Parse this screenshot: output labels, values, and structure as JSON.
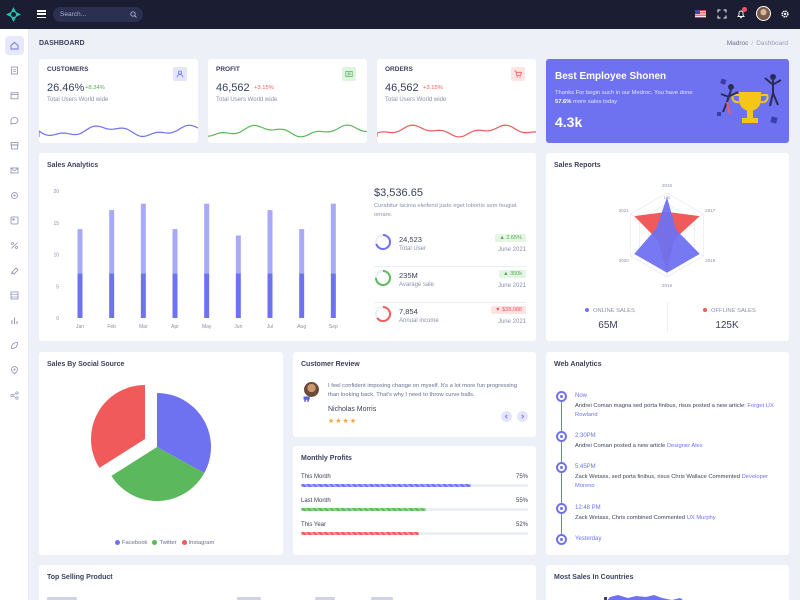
{
  "topbar": {
    "search_placeholder": "Search..."
  },
  "sidebar": {
    "items": [
      {
        "name": "home-icon",
        "active": true
      },
      {
        "name": "document-icon"
      },
      {
        "name": "calendar-icon"
      },
      {
        "name": "chat-icon"
      },
      {
        "name": "archive-icon"
      },
      {
        "name": "mail-icon"
      },
      {
        "name": "settings-icon"
      },
      {
        "name": "widget-icon"
      },
      {
        "name": "percent-icon"
      },
      {
        "name": "palette-icon"
      },
      {
        "name": "table-icon"
      },
      {
        "name": "chart-icon"
      },
      {
        "name": "leaf-icon"
      },
      {
        "name": "location-icon"
      },
      {
        "name": "share-icon"
      }
    ]
  },
  "page": {
    "title": "DASHBOARD",
    "breadcrumb": [
      "Madroc",
      "Dashboard"
    ]
  },
  "stats": [
    {
      "title": "CUSTOMERS",
      "value": "26.46%",
      "change": "+8.34%",
      "change_color": "#4caf50",
      "subtitle": "Total Users World wide",
      "icon": "user-icon",
      "icon_color": "#6f72f0",
      "icon_bg": "#e3e5fb",
      "wave_color": "#6f72f0"
    },
    {
      "title": "PROFIT",
      "value": "46,562",
      "change": "+3.15%",
      "change_color": "#f05a5a",
      "subtitle": "Total Users World wide",
      "icon": "dollar-icon",
      "icon_color": "#5cb85c",
      "icon_bg": "#def4de",
      "wave_color": "#5cb85c"
    },
    {
      "title": "ORDERS",
      "value": "46,562",
      "change": "+3.15%",
      "change_color": "#f05a5a",
      "subtitle": "Total Users World wide",
      "icon": "cart-icon",
      "icon_color": "#f05a5a",
      "icon_bg": "#fde3e3",
      "wave_color": "#f05a5a"
    }
  ],
  "employee": {
    "title": "Best Employee Shonen",
    "text_before": "Thanks For begin such in our Medroc. You have done ",
    "text_highlight": "57.6%",
    "text_after": " more sales today",
    "value": "4.3k"
  },
  "sales_analytics": {
    "title": "Sales Analytics",
    "amount": "$3,536.65",
    "description": "Curabitur lacinia eleifend justo eget lobortis sem feugiat ornare.",
    "rows": [
      {
        "value": "24,523",
        "label": "Total User",
        "badge": "2.65%",
        "badge_arrow": "▲",
        "badge_color": "#4caf50",
        "badge_bg": "#e4f5e4",
        "date": "June 2021",
        "ring_color": "#6f72f0",
        "ring_pct": 0.7
      },
      {
        "value": "235M",
        "label": "Avarage sale",
        "badge": "350k",
        "badge_arrow": "▲",
        "badge_color": "#4caf50",
        "badge_bg": "#e4f5e4",
        "date": "June 2021",
        "ring_color": "#5cb85c",
        "ring_pct": 0.75
      },
      {
        "value": "7,854",
        "label": "Annual income",
        "badge": "$38,088",
        "badge_arrow": "▼",
        "badge_color": "#f05a5a",
        "badge_bg": "#fde3e3",
        "date": "June 2021",
        "ring_color": "#f05a5a",
        "ring_pct": 0.65
      }
    ]
  },
  "sales_reports": {
    "title": "Sales Reports",
    "online_label": "ONLINE SALES",
    "online_value": "65M",
    "online_color": "#6f72f0",
    "offline_label": "OFFLINE SALES",
    "offline_value": "125K",
    "offline_color": "#f05a5a"
  },
  "social": {
    "title": "Sales By Social Source",
    "legend": [
      {
        "name": "Facebook",
        "color": "#6f72f0"
      },
      {
        "name": "Twitter",
        "color": "#5cb85c"
      },
      {
        "name": "Instagram",
        "color": "#f05a5a"
      }
    ]
  },
  "review": {
    "title": "Customer Review",
    "text": "I feel confident imposing change on myself. It's a lot more fun progressing than looking back. That's why I need to throw curve balls.",
    "name": "Nicholas Morris",
    "stars": "★★★★"
  },
  "monthly_profits": {
    "title": "Monthly Profits",
    "rows": [
      {
        "label": "This Month",
        "pct": "75%",
        "value": 75,
        "color": "#6f72f0"
      },
      {
        "label": "Last Month",
        "pct": "55%",
        "value": 55,
        "color": "#5cb85c"
      },
      {
        "label": "This Year",
        "pct": "52%",
        "value": 52,
        "color": "#f05a5a"
      }
    ]
  },
  "web_analytics": {
    "title": "Web Analytics",
    "items": [
      {
        "time": "Now",
        "text": "Andrei Coman magna sed porta finibus, risus posted a new article: ",
        "link": "Forget UX Rowland"
      },
      {
        "time": "2:30PM",
        "text": "Andrei Coman posted a new article ",
        "link": "Designer Alex"
      },
      {
        "time": "5:45PM",
        "text": "Zack Wetass, sed porta finibus, risus Chris Wallace Commented ",
        "link": "Developer Moreno"
      },
      {
        "time": "12:48 PM",
        "text": "Zack Wetass, Chris combined Commented ",
        "link": "UX Murphy"
      },
      {
        "time": "Yesterday",
        "text": "",
        "link": ""
      }
    ]
  },
  "top_selling": {
    "title": "Top Selling Product"
  },
  "countries": {
    "title": "Most Sales In Countries"
  },
  "chart_data": [
    {
      "type": "bar",
      "title": "Sales Analytics",
      "categories": [
        "Jan",
        "Feb",
        "Mar",
        "Apr",
        "May",
        "Jun",
        "Jul",
        "Aug",
        "Sep"
      ],
      "series": [
        {
          "values": [
            7,
            7,
            7,
            7,
            7,
            7,
            7,
            7,
            7
          ],
          "color": "#6f72f0"
        },
        {
          "values": [
            7,
            10,
            11,
            7,
            11,
            6,
            10,
            7,
            11
          ],
          "color": "#a8aaf7"
        }
      ],
      "stacked": true,
      "ylim": [
        0,
        20
      ],
      "yticks": [
        0,
        5,
        10,
        15,
        20
      ]
    },
    {
      "type": "radar",
      "title": "Sales Reports",
      "categories": [
        "2016",
        "2017",
        "2018",
        "2019",
        "2020",
        "2021"
      ],
      "tick_label": "100",
      "series": [
        {
          "values": [
            0.55,
            0.9,
            0.2,
            0.9,
            0.25,
            0.9
          ],
          "color": "#f05a5a"
        },
        {
          "values": [
            0.9,
            0.25,
            0.9,
            0.9,
            0.9,
            0.3
          ],
          "color": "#6f72f0"
        }
      ]
    },
    {
      "type": "pie",
      "title": "Sales By Social Source",
      "categories": [
        "Facebook",
        "Twitter",
        "Instagram"
      ],
      "values": [
        33,
        33,
        34
      ],
      "colors": [
        "#6f72f0",
        "#5cb85c",
        "#f05a5a"
      ]
    }
  ]
}
